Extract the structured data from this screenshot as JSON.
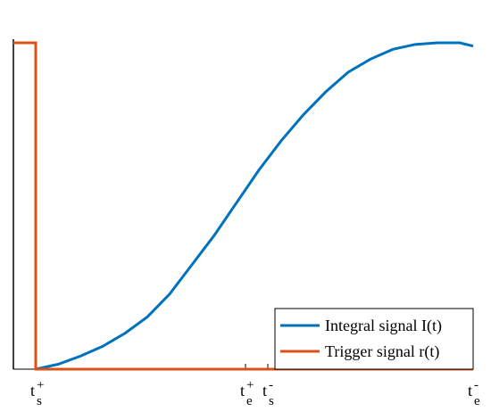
{
  "chart_data": {
    "type": "line",
    "x": [
      1,
      2,
      3,
      4,
      5,
      6,
      7,
      8,
      9,
      10,
      11,
      12,
      13,
      14,
      15,
      16,
      17,
      18,
      19,
      20,
      20.6
    ],
    "series": [
      {
        "name": "Integral signal I(t)",
        "color": "#0072BD",
        "x": [
          1,
          2,
          3,
          4,
          5,
          6,
          7,
          8,
          9,
          10,
          11,
          12,
          13,
          14,
          15,
          16,
          17,
          18,
          19,
          20,
          20.6
        ],
        "values": [
          0,
          0.015,
          0.04,
          0.07,
          0.11,
          0.16,
          0.23,
          0.32,
          0.41,
          0.51,
          0.61,
          0.7,
          0.78,
          0.85,
          0.91,
          0.95,
          0.98,
          0.995,
          1,
          1,
          0.99
        ]
      },
      {
        "name": "Trigger signal r(t)",
        "color": "#D95319",
        "x": [
          0,
          1,
          1,
          20.6
        ],
        "values": [
          1,
          1,
          0,
          0
        ]
      }
    ],
    "xlim": [
      0,
      20.6
    ],
    "ylim": [
      0,
      1
    ],
    "xticks": [
      {
        "value": 1,
        "label": "t",
        "subscript": "s",
        "superscript": "+"
      },
      {
        "value": 10.4,
        "label": "t",
        "subscript": "e",
        "superscript": "+"
      },
      {
        "value": 11.4,
        "label": "t",
        "subscript": "s",
        "superscript": "-"
      },
      {
        "value": 20.6,
        "label": "t",
        "subscript": "e",
        "superscript": "-"
      }
    ],
    "legend": "lower right"
  }
}
